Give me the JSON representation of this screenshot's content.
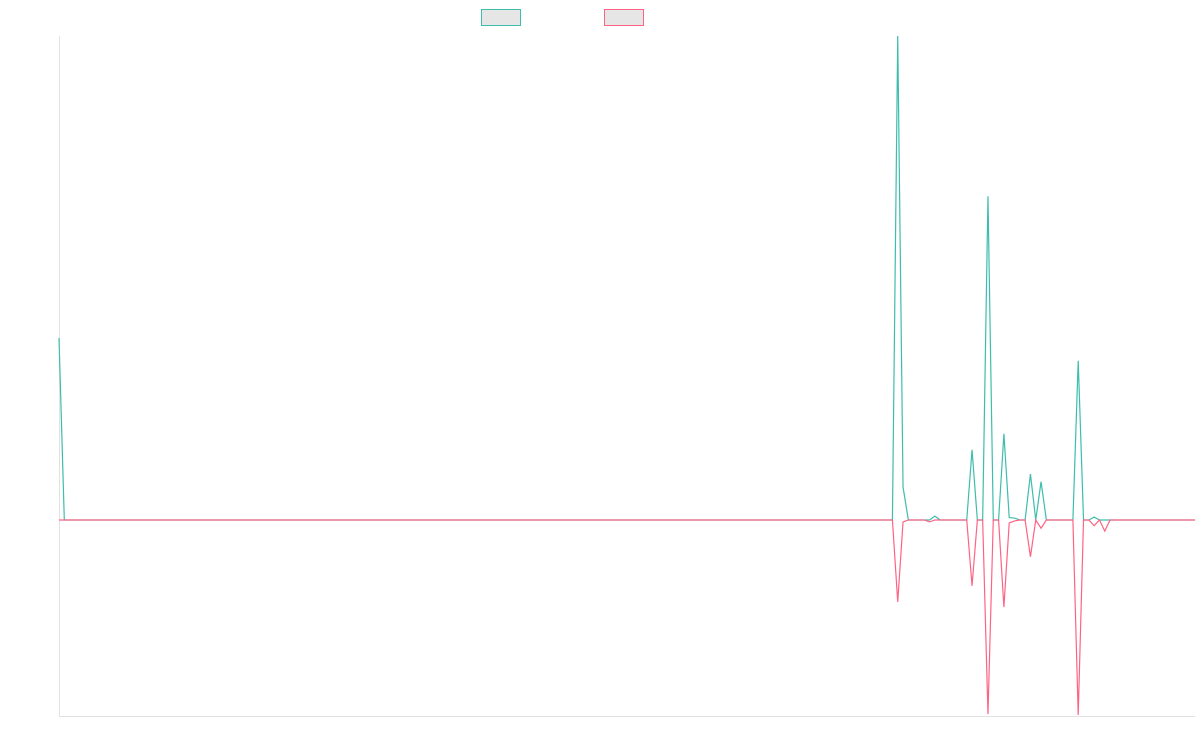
{
  "chart_data": {
    "type": "line",
    "ylim": [
      -40.5,
      100
    ],
    "series": [
      {
        "color": "#3dbdac",
        "values": [
          37.6,
          0,
          0,
          0,
          0,
          0,
          0,
          0,
          0,
          0,
          0,
          0,
          0,
          0,
          0,
          0,
          0,
          0,
          0,
          0,
          0,
          0,
          0,
          0,
          0,
          0,
          0,
          0,
          0,
          0,
          0,
          0,
          0,
          0,
          0,
          0,
          0,
          0,
          0,
          0,
          0,
          0,
          0,
          0,
          0,
          0,
          0,
          0,
          0,
          0,
          0,
          0,
          0,
          0,
          0,
          0,
          0,
          0,
          0,
          0,
          0,
          0,
          0,
          0,
          0,
          0,
          0,
          0,
          0,
          0,
          0,
          0,
          0,
          0,
          0,
          0,
          0,
          0,
          0,
          0,
          0,
          0,
          0,
          0,
          0,
          0,
          0,
          0,
          0,
          0,
          0,
          0,
          0,
          0,
          0,
          0,
          0,
          0,
          0,
          0,
          0,
          0,
          0,
          0,
          0,
          0,
          0,
          0,
          0,
          0,
          0,
          0,
          0,
          0,
          0,
          0,
          0,
          0,
          0,
          0,
          0,
          0,
          0,
          0,
          0,
          0,
          0,
          0,
          0,
          0,
          0,
          0,
          0,
          0,
          0,
          0,
          0,
          0,
          0,
          0,
          0,
          0,
          0,
          0,
          0,
          0,
          0,
          0,
          0,
          0,
          0,
          0,
          0,
          0,
          0,
          0,
          0,
          0,
          100,
          6.8,
          0,
          0,
          0,
          0,
          0,
          0.8,
          0,
          0,
          0,
          0,
          0,
          0,
          14.5,
          0,
          0,
          66.9,
          0,
          0,
          17.8,
          0.5,
          0.4,
          0,
          0,
          9.5,
          0,
          7.9,
          0,
          0,
          0,
          0,
          0,
          0,
          32.9,
          0,
          0,
          0.6,
          0,
          0,
          0,
          0,
          0,
          0,
          0,
          0,
          0,
          0,
          0,
          0,
          0,
          0,
          0,
          0,
          0,
          0,
          0
        ]
      },
      {
        "color": "#ff6384",
        "values": [
          0,
          0,
          0,
          0,
          0,
          0,
          0,
          0,
          0,
          0,
          0,
          0,
          0,
          0,
          0,
          0,
          0,
          0,
          0,
          0,
          0,
          0,
          0,
          0,
          0,
          0,
          0,
          0,
          0,
          0,
          0,
          0,
          0,
          0,
          0,
          0,
          0,
          0,
          0,
          0,
          0,
          0,
          0,
          0,
          0,
          0,
          0,
          0,
          0,
          0,
          0,
          0,
          0,
          0,
          0,
          0,
          0,
          0,
          0,
          0,
          0,
          0,
          0,
          0,
          0,
          0,
          0,
          0,
          0,
          0,
          0,
          0,
          0,
          0,
          0,
          0,
          0,
          0,
          0,
          0,
          0,
          0,
          0,
          0,
          0,
          0,
          0,
          0,
          0,
          0,
          0,
          0,
          0,
          0,
          0,
          0,
          0,
          0,
          0,
          0,
          0,
          0,
          0,
          0,
          0,
          0,
          0,
          0,
          0,
          0,
          0,
          0,
          0,
          0,
          0,
          0,
          0,
          0,
          0,
          0,
          0,
          0,
          0,
          0,
          0,
          0,
          0,
          0,
          0,
          0,
          0,
          0,
          0,
          0,
          0,
          0,
          0,
          0,
          0,
          0,
          0,
          0,
          0,
          0,
          0,
          0,
          0,
          0,
          0,
          0,
          0,
          0,
          0,
          0,
          0,
          0,
          0,
          0,
          -16.9,
          -0.4,
          0,
          0,
          0,
          0,
          -0.4,
          0,
          0,
          0,
          0,
          0,
          0,
          0,
          -13.6,
          0,
          0,
          -40.1,
          0,
          0,
          -18,
          -0.6,
          -0.2,
          0,
          0,
          -7.6,
          0,
          -1.7,
          0,
          0,
          0,
          0,
          0,
          0,
          -40.3,
          0,
          0,
          -1.2,
          0,
          -2.3,
          0,
          0,
          0,
          0,
          0,
          0,
          0,
          0,
          0,
          0,
          0,
          0,
          0,
          0,
          0,
          0,
          0
        ]
      }
    ]
  }
}
